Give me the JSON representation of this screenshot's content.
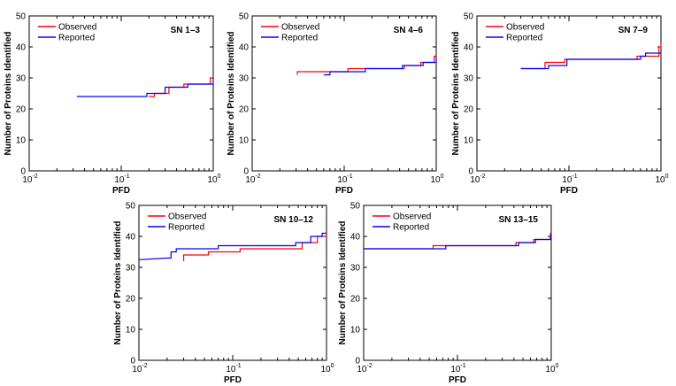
{
  "colors": {
    "observed": "#ff0000",
    "reported": "#0000ff",
    "axis": "#000000",
    "background": "#ffffff"
  },
  "chart_data": [
    {
      "type": "line",
      "panel_label": "SN 1–3",
      "xlabel": "PFD",
      "ylabel": "Number of Proteins Identified",
      "xscale": "log",
      "xlim": [
        0.01,
        1
      ],
      "ylim": [
        0,
        50
      ],
      "yticks": [
        0,
        10,
        20,
        30,
        40,
        50
      ],
      "xtick_labels": [
        "10",
        "10",
        "10"
      ],
      "xtick_exponents": [
        "-2",
        "-1",
        "0"
      ],
      "legend": "top-left",
      "grid": false,
      "series": [
        {
          "name": "Observed",
          "x": [
            0.2,
            0.23,
            0.23,
            0.33,
            0.33,
            0.48,
            0.48,
            0.93,
            0.93,
            1.0
          ],
          "y": [
            24,
            24,
            25,
            25,
            27,
            27,
            28,
            28,
            30,
            30
          ]
        },
        {
          "name": "Reported",
          "x": [
            0.033,
            0.19,
            0.19,
            0.3,
            0.3,
            0.53,
            0.53,
            1.0,
            1.0
          ],
          "y": [
            24,
            24,
            25,
            25,
            27,
            27,
            28,
            28,
            30
          ]
        }
      ]
    },
    {
      "type": "line",
      "panel_label": "SN 4–6",
      "xlabel": "PFD",
      "ylabel": "Number of Proteins Identified",
      "xscale": "log",
      "xlim": [
        0.01,
        1
      ],
      "ylim": [
        0,
        50
      ],
      "yticks": [
        0,
        10,
        20,
        30,
        40,
        50
      ],
      "xtick_labels": [
        "10",
        "10",
        "10"
      ],
      "xtick_exponents": [
        "-2",
        "-1",
        "0"
      ],
      "legend": "top-left",
      "grid": false,
      "series": [
        {
          "name": "Observed",
          "x": [
            0.031,
            0.031,
            0.11,
            0.11,
            0.45,
            0.45,
            0.68,
            0.68,
            0.95,
            0.95,
            1.0
          ],
          "y": [
            31,
            32,
            32,
            33,
            33,
            34,
            34,
            35,
            35,
            37,
            37
          ]
        },
        {
          "name": "Reported",
          "x": [
            0.06,
            0.07,
            0.07,
            0.17,
            0.17,
            0.43,
            0.43,
            0.72,
            0.72,
            1.0,
            1.0
          ],
          "y": [
            31,
            31,
            32,
            32,
            33,
            33,
            34,
            34,
            35,
            35,
            37
          ]
        }
      ]
    },
    {
      "type": "line",
      "panel_label": "SN 7–9",
      "xlabel": "PFD",
      "ylabel": "Number of Proteins Identified",
      "xscale": "log",
      "xlim": [
        0.01,
        1
      ],
      "ylim": [
        0,
        50
      ],
      "yticks": [
        0,
        10,
        20,
        30,
        40,
        50
      ],
      "xtick_labels": [
        "10",
        "10",
        "10"
      ],
      "xtick_exponents": [
        "-2",
        "-1",
        "0"
      ],
      "legend": "top-left",
      "grid": false,
      "series": [
        {
          "name": "Observed",
          "x": [
            0.03,
            0.055,
            0.055,
            0.09,
            0.09,
            0.55,
            0.55,
            0.95,
            0.95,
            1.0,
            1.0
          ],
          "y": [
            33,
            33,
            35,
            35,
            36,
            36,
            37,
            37,
            40,
            40,
            41
          ]
        },
        {
          "name": "Reported",
          "x": [
            0.03,
            0.06,
            0.06,
            0.095,
            0.095,
            0.6,
            0.6,
            0.68,
            0.68,
            1.0
          ],
          "y": [
            33,
            33,
            34,
            34,
            36,
            36,
            37,
            37,
            38,
            38
          ]
        }
      ]
    },
    {
      "type": "line",
      "panel_label": "SN 10–12",
      "xlabel": "PFD",
      "ylabel": "Number of Proteins Identified",
      "xscale": "log",
      "xlim": [
        0.01,
        1
      ],
      "ylim": [
        0,
        50
      ],
      "yticks": [
        0,
        10,
        20,
        30,
        40,
        50
      ],
      "xtick_labels": [
        "10",
        "10",
        "10"
      ],
      "xtick_exponents": [
        "-2",
        "-1",
        "0"
      ],
      "legend": "top-left",
      "grid": false,
      "series": [
        {
          "name": "Observed",
          "x": [
            0.03,
            0.03,
            0.055,
            0.055,
            0.12,
            0.12,
            0.55,
            0.55,
            0.8,
            0.8,
            1.0
          ],
          "y": [
            32,
            34,
            34,
            35,
            35,
            36,
            36,
            38,
            38,
            40,
            40
          ]
        },
        {
          "name": "Reported",
          "x": [
            0.01,
            0.02,
            0.022,
            0.022,
            0.025,
            0.025,
            0.07,
            0.07,
            0.47,
            0.47,
            0.68,
            0.68,
            0.9,
            0.9,
            1.0
          ],
          "y": [
            32.5,
            33,
            33,
            35,
            35,
            36,
            36,
            37,
            37,
            38,
            38,
            40,
            40,
            41,
            41
          ]
        }
      ]
    },
    {
      "type": "line",
      "panel_label": "SN 13–15",
      "xlabel": "PFD",
      "ylabel": "Number of Proteins Identified",
      "xscale": "log",
      "xlim": [
        0.01,
        1
      ],
      "ylim": [
        0,
        50
      ],
      "yticks": [
        0,
        10,
        20,
        30,
        40,
        50
      ],
      "xtick_labels": [
        "10",
        "10",
        "10"
      ],
      "xtick_exponents": [
        "-2",
        "-1",
        "0"
      ],
      "legend": "top-left",
      "grid": false,
      "series": [
        {
          "name": "Observed",
          "x": [
            0.01,
            0.055,
            0.055,
            0.42,
            0.42,
            0.65,
            0.65,
            0.98,
            0.98,
            1.0
          ],
          "y": [
            36,
            36,
            37,
            37,
            38,
            38,
            39,
            39,
            41,
            41
          ]
        },
        {
          "name": "Reported",
          "x": [
            0.01,
            0.075,
            0.075,
            0.45,
            0.45,
            0.68,
            0.68,
            0.98,
            0.98,
            1.0
          ],
          "y": [
            36,
            36,
            37,
            37,
            38,
            38,
            39,
            39,
            40,
            40
          ]
        }
      ]
    }
  ]
}
